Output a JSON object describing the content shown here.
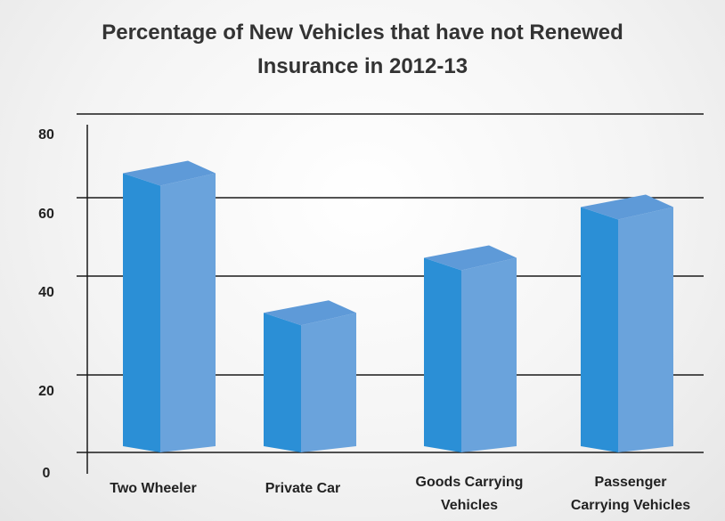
{
  "chart_data": {
    "type": "bar",
    "title": "Percentage of New Vehicles that have not Renewed Insurance in 2012-13",
    "categories": [
      "Two Wheeler",
      "Private Car",
      "Goods Carrying Vehicles",
      "Passenger Carrying Vehicles"
    ],
    "category_lines": [
      [
        "Two Wheeler"
      ],
      [
        "Private Car"
      ],
      [
        "Goods Carrying",
        "Vehicles"
      ],
      [
        "Passenger",
        "Carrying Vehicles"
      ]
    ],
    "values": [
      66,
      33,
      46,
      58
    ],
    "yticks": [
      0,
      20,
      40,
      60,
      80
    ],
    "ylim": [
      0,
      80
    ],
    "xlabel": "",
    "ylabel": "",
    "grid": true,
    "legend": "none",
    "colors": {
      "bar_front": "#2b8fd6",
      "bar_side": "#6aa3dc",
      "bar_top": "#5e9ad8",
      "gridline": "#1a1a1a",
      "text": "#222222"
    }
  }
}
